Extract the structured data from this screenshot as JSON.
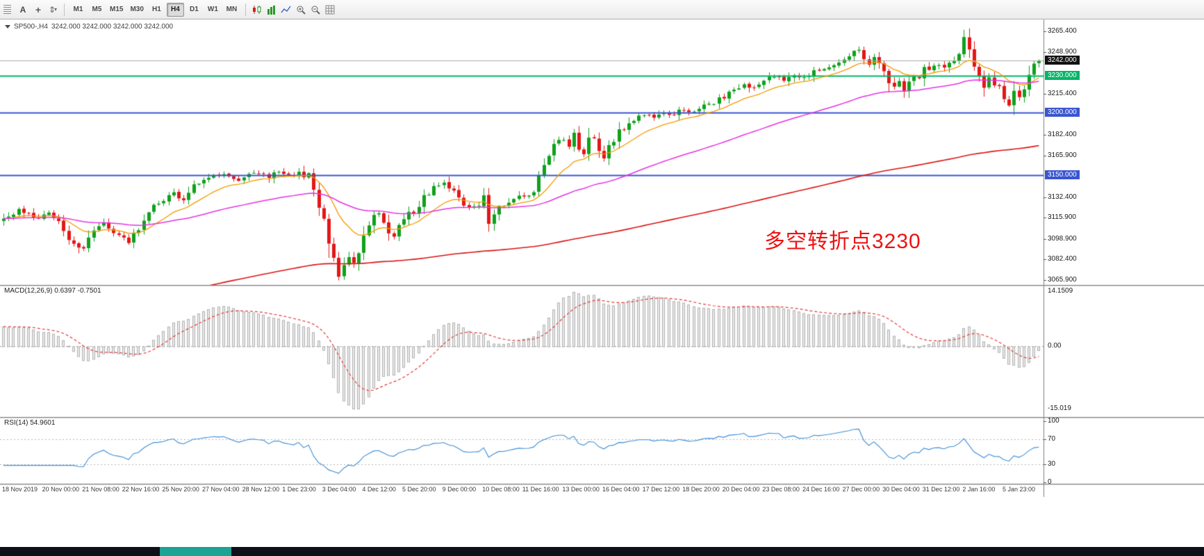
{
  "toolbar": {
    "text_tool_label": "A",
    "crosshair_glyph": "+",
    "scale_glyph": "⇕",
    "caret_glyph": "▾",
    "timeframes": [
      "M1",
      "M5",
      "M15",
      "M30",
      "H1",
      "H4",
      "D1",
      "W1",
      "MN"
    ],
    "active_timeframe": "H4",
    "icons": [
      "toolbar-grip",
      "text-tool",
      "crosshair-tool",
      "vertical-scale-tool",
      "candlestick-chart",
      "bar-chart",
      "line-chart",
      "zoom-in",
      "zoom-out",
      "grid"
    ]
  },
  "chart": {
    "symbol_period": "SP500-,H4",
    "ohlc_text": "3242.000 3242.000 3242.000 3242.000",
    "annotation": "多空转折点3230",
    "levels": [
      {
        "price": 3242.0,
        "color": "#a7a7a7",
        "width": 1,
        "role": "current-price-line"
      },
      {
        "price": 3230.0,
        "color": "#00b567",
        "width": 2,
        "role": "support-resistance"
      },
      {
        "price": 3200.0,
        "color": "#3a55cf",
        "width": 2,
        "role": "support-resistance"
      },
      {
        "price": 3150.0,
        "color": "#3a55cf",
        "width": 2,
        "role": "support-resistance"
      }
    ]
  },
  "chart_data": {
    "type": "candlestick",
    "symbol": "SP500-",
    "timeframe": "H4",
    "bars": 208,
    "y_range": [
      3065.9,
      3265.4
    ],
    "current_price": 3242.0,
    "price_waypoints": [
      [
        0,
        3116
      ],
      [
        3,
        3123
      ],
      [
        6,
        3115
      ],
      [
        9,
        3120
      ],
      [
        12,
        3106
      ],
      [
        14,
        3092
      ],
      [
        16,
        3090
      ],
      [
        18,
        3104
      ],
      [
        20,
        3112
      ],
      [
        23,
        3100
      ],
      [
        25,
        3097
      ],
      [
        27,
        3110
      ],
      [
        29,
        3123
      ],
      [
        32,
        3128
      ],
      [
        34,
        3135
      ],
      [
        36,
        3131
      ],
      [
        38,
        3140
      ],
      [
        41,
        3148
      ],
      [
        44,
        3150
      ],
      [
        47,
        3146
      ],
      [
        50,
        3152
      ],
      [
        53,
        3149
      ],
      [
        55,
        3153
      ],
      [
        57,
        3150
      ],
      [
        59,
        3152
      ],
      [
        61,
        3148
      ],
      [
        63,
        3128
      ],
      [
        64,
        3112
      ],
      [
        65,
        3096
      ],
      [
        66,
        3080
      ],
      [
        67,
        3069
      ],
      [
        68,
        3076
      ],
      [
        69,
        3083
      ],
      [
        70,
        3078
      ],
      [
        71,
        3090
      ],
      [
        72,
        3099
      ],
      [
        73,
        3108
      ],
      [
        74,
        3116
      ],
      [
        75,
        3120
      ],
      [
        76,
        3112
      ],
      [
        77,
        3104
      ],
      [
        78,
        3100
      ],
      [
        79,
        3108
      ],
      [
        80,
        3114
      ],
      [
        82,
        3122
      ],
      [
        84,
        3131
      ],
      [
        86,
        3139
      ],
      [
        88,
        3143
      ],
      [
        90,
        3136
      ],
      [
        92,
        3128
      ],
      [
        94,
        3124
      ],
      [
        96,
        3130
      ],
      [
        97,
        3114
      ],
      [
        99,
        3124
      ],
      [
        101,
        3128
      ],
      [
        103,
        3133
      ],
      [
        105,
        3131
      ],
      [
        106,
        3139
      ],
      [
        108,
        3156
      ],
      [
        110,
        3171
      ],
      [
        112,
        3179
      ],
      [
        113,
        3171
      ],
      [
        114,
        3183
      ],
      [
        115,
        3174
      ],
      [
        116,
        3167
      ],
      [
        117,
        3176
      ],
      [
        118,
        3181
      ],
      [
        119,
        3171
      ],
      [
        120,
        3165
      ],
      [
        121,
        3173
      ],
      [
        122,
        3181
      ],
      [
        124,
        3189
      ],
      [
        126,
        3195
      ],
      [
        128,
        3199
      ],
      [
        130,
        3195
      ],
      [
        132,
        3201
      ],
      [
        134,
        3197
      ],
      [
        136,
        3203
      ],
      [
        138,
        3201
      ],
      [
        140,
        3205
      ],
      [
        142,
        3209
      ],
      [
        144,
        3214
      ],
      [
        146,
        3219
      ],
      [
        148,
        3223
      ],
      [
        150,
        3220
      ],
      [
        152,
        3226
      ],
      [
        154,
        3229
      ],
      [
        156,
        3225
      ],
      [
        158,
        3231
      ],
      [
        160,
        3228
      ],
      [
        162,
        3233
      ],
      [
        164,
        3236
      ],
      [
        166,
        3239
      ],
      [
        168,
        3243
      ],
      [
        170,
        3247
      ],
      [
        171,
        3251
      ],
      [
        172,
        3246
      ],
      [
        173,
        3240
      ],
      [
        174,
        3244
      ],
      [
        175,
        3238
      ],
      [
        176,
        3234
      ],
      [
        177,
        3227
      ],
      [
        178,
        3220
      ],
      [
        179,
        3224
      ],
      [
        180,
        3217
      ],
      [
        181,
        3224
      ],
      [
        182,
        3230
      ],
      [
        183,
        3228
      ],
      [
        184,
        3234
      ],
      [
        186,
        3239
      ],
      [
        188,
        3236
      ],
      [
        190,
        3241
      ],
      [
        191,
        3249
      ],
      [
        192,
        3262
      ],
      [
        193,
        3254
      ],
      [
        194,
        3238
      ],
      [
        195,
        3226
      ],
      [
        196,
        3221
      ],
      [
        197,
        3229
      ],
      [
        198,
        3224
      ],
      [
        199,
        3221
      ],
      [
        200,
        3211
      ],
      [
        201,
        3207
      ],
      [
        202,
        3217
      ],
      [
        203,
        3212
      ],
      [
        204,
        3221
      ],
      [
        205,
        3229
      ],
      [
        206,
        3238
      ],
      [
        207,
        3242
      ]
    ],
    "overlays": [
      {
        "type": "ma",
        "period": 13,
        "color": "#f59b00",
        "width": 1.3
      },
      {
        "type": "ma",
        "period": 55,
        "color": "#e632e6",
        "width": 1.5
      },
      {
        "type": "ma",
        "period": 200,
        "color": "#dc1414",
        "width": 1.6,
        "seed": 3032
      }
    ],
    "y_axis": {
      "ticks": [
        {
          "text": "3265.400",
          "value": 3265.4
        },
        {
          "text": "3248.900",
          "value": 3248.9
        },
        {
          "text": "3215.400",
          "value": 3215.4
        },
        {
          "text": "3182.400",
          "value": 3182.4
        },
        {
          "text": "3165.900",
          "value": 3165.9
        },
        {
          "text": "3132.400",
          "value": 3132.4
        },
        {
          "text": "3115.900",
          "value": 3115.9
        },
        {
          "text": "3098.900",
          "value": 3098.9
        },
        {
          "text": "3082.400",
          "value": 3082.4
        },
        {
          "text": "3065.900",
          "value": 3065.9
        }
      ],
      "badges": [
        {
          "text": "3242.000",
          "price": 3242.0,
          "bg": "#111111"
        },
        {
          "text": "3230.000",
          "price": 3230.0,
          "bg": "#00b567"
        },
        {
          "text": "3200.000",
          "price": 3200.0,
          "bg": "#3a55cf"
        },
        {
          "text": "3150.000",
          "price": 3150.0,
          "bg": "#3a55cf"
        }
      ]
    },
    "x_label_step": 8,
    "x_labels": [
      "18 Nov 2019",
      "20 Nov 00:00",
      "21 Nov 08:00",
      "22 Nov 16:00",
      "25 Nov 20:00",
      "27 Nov 04:00",
      "28 Nov 12:00",
      "1 Dec 23:00",
      "3 Dec 04:00",
      "4 Dec 12:00",
      "5 Dec 20:00",
      "9 Dec 00:00",
      "10 Dec 08:00",
      "11 Dec 16:00",
      "13 Dec 00:00",
      "16 Dec 04:00",
      "17 Dec 12:00",
      "18 Dec 20:00",
      "20 Dec 04:00",
      "23 Dec 08:00",
      "24 Dec 16:00",
      "27 Dec 00:00",
      "30 Dec 04:00",
      "31 Dec 12:00",
      "2 Jan 16:00",
      "5 Jan 23:00"
    ],
    "indicators": [
      {
        "name": "MACD",
        "label": "MACD(12,26,9) 0.6397 -0.7501",
        "params": [
          12,
          26,
          9
        ],
        "values": {
          "main": 0.6397,
          "signal": -0.7501
        },
        "scale": {
          "max": "14.1509",
          "zero": "0.00",
          "min": "-15.019"
        },
        "histogram_color": "#e9e9e9",
        "signal_color": "#e23b3b"
      },
      {
        "name": "RSI",
        "label": "RSI(14) 54.9601",
        "period": 14,
        "value": 54.9601,
        "line_color": "#3e8ed6",
        "levels": [
          70,
          30
        ],
        "scale": [
          {
            "text": "100",
            "value": 100
          },
          {
            "text": "70",
            "value": 70
          },
          {
            "text": "30",
            "value": 30
          },
          {
            "text": "0",
            "value": 0
          }
        ]
      }
    ],
    "candle_colors": {
      "bull": "#10a11c",
      "bear": "#e41717"
    }
  },
  "taskbar": {
    "bg": "#0e1118",
    "segment_color": "#1ba393"
  }
}
